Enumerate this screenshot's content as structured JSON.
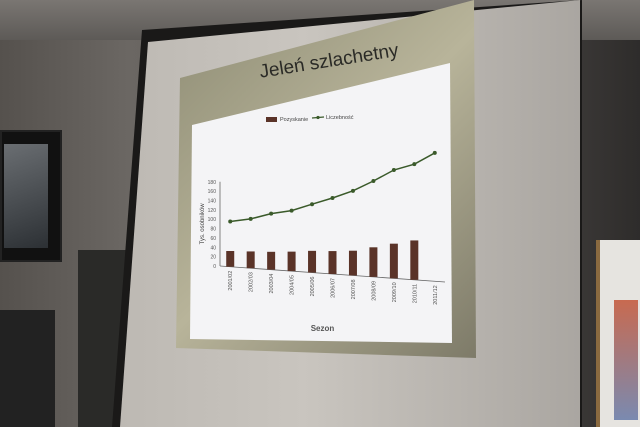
{
  "slide": {
    "title": "Jeleń szlachetny"
  },
  "chart_data": {
    "type": "bar+line",
    "title": "Jeleń szlachetny",
    "xlabel": "Sezon",
    "ylabel": "Tys. osobników",
    "ylim": [
      0,
      180
    ],
    "yticks": [
      0,
      20,
      40,
      60,
      80,
      100,
      120,
      140,
      160,
      180
    ],
    "categories": [
      "2001/02",
      "2002/03",
      "2003/04",
      "2004/05",
      "2005/06",
      "2006/07",
      "2007/08",
      "2008/09",
      "2009/10",
      "2010/11",
      "2011/12"
    ],
    "legend_position": "top",
    "series": [
      {
        "name": "Pozyskanie",
        "type": "bar",
        "color": "#5a3328",
        "values": [
          33,
          34,
          35,
          37,
          40,
          41,
          43,
          50,
          57,
          63,
          null
        ]
      },
      {
        "name": "Liczebność",
        "type": "line",
        "color": "#3a5a2a",
        "values": [
          95,
          100,
          110,
          115,
          126,
          136,
          147,
          162,
          178,
          185,
          200
        ]
      }
    ]
  }
}
